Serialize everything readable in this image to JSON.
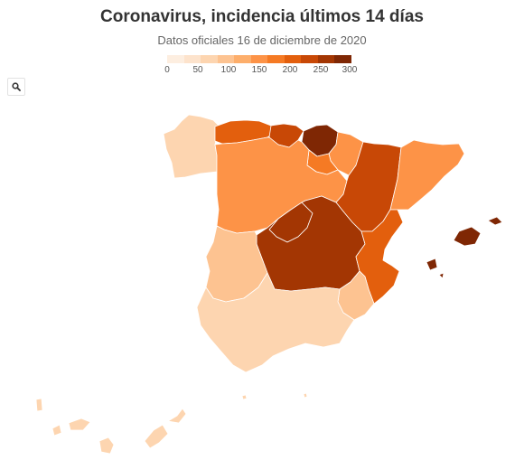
{
  "title": "Coronavirus, incidencia últimos 14 días",
  "subtitle": "Datos oficiales 16 de diciembre de 2020",
  "legend": {
    "ticks": [
      "0",
      "50",
      "100",
      "150",
      "200",
      "250",
      "300"
    ],
    "colors": [
      "#fdeee0",
      "#fde3cc",
      "#fdd5b0",
      "#fdc391",
      "#fdae6b",
      "#fd9347",
      "#f57a24",
      "#e35f0d",
      "#c84806",
      "#a33603",
      "#7f2704"
    ]
  },
  "controls": {
    "search_icon": "search-icon"
  },
  "map_data": {
    "metric": "incidencia últimos 14 días",
    "scale": [
      0,
      300
    ],
    "regions": [
      {
        "id": "galicia",
        "value": 60
      },
      {
        "id": "asturias",
        "value": 200
      },
      {
        "id": "cantabria",
        "value": 220
      },
      {
        "id": "pais-vasco",
        "value": 300
      },
      {
        "id": "navarra",
        "value": 150
      },
      {
        "id": "la-rioja",
        "value": 170
      },
      {
        "id": "castilla-y-leon",
        "value": 140
      },
      {
        "id": "aragon",
        "value": 230
      },
      {
        "id": "cataluna",
        "value": 160
      },
      {
        "id": "madrid",
        "value": 270
      },
      {
        "id": "castilla-la-mancha",
        "value": 265
      },
      {
        "id": "extremadura",
        "value": 100
      },
      {
        "id": "comunidad-valenciana",
        "value": 215
      },
      {
        "id": "murcia",
        "value": 90
      },
      {
        "id": "andalucia",
        "value": 55
      },
      {
        "id": "baleares",
        "value": 290
      },
      {
        "id": "canarias",
        "value": 60
      },
      {
        "id": "ceuta",
        "value": 60
      },
      {
        "id": "melilla",
        "value": 60
      }
    ]
  }
}
